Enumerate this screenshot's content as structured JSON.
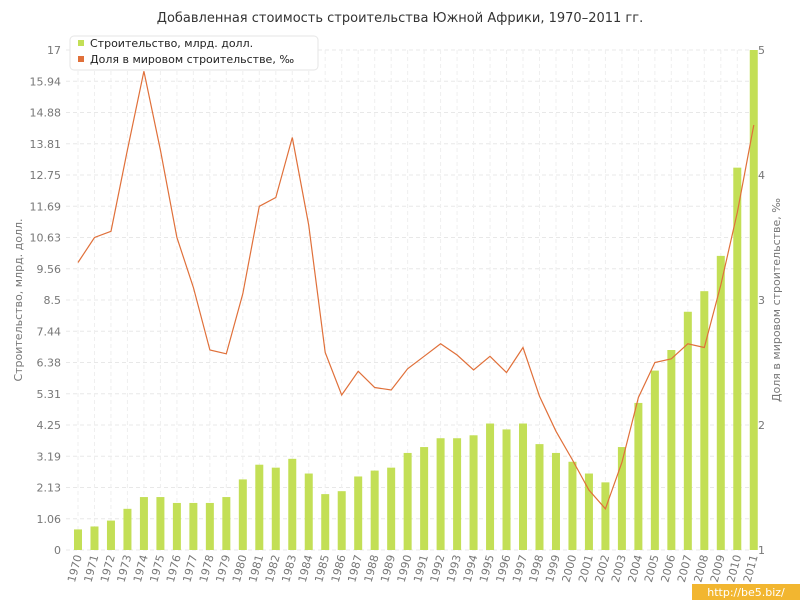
{
  "chart_data": {
    "type": "bar",
    "title": "Добавленная стоимость строительства Южной Африки, 1970–2011 гг.",
    "ylabel_left": "Строительство, млрд. долл.",
    "ylabel_right": "Доля в мировом строительстве, ‰",
    "categories": [
      "1970",
      "1971",
      "1972",
      "1973",
      "1974",
      "1975",
      "1976",
      "1977",
      "1978",
      "1979",
      "1980",
      "1981",
      "1982",
      "1983",
      "1984",
      "1985",
      "1986",
      "1987",
      "1988",
      "1989",
      "1990",
      "1991",
      "1992",
      "1993",
      "1994",
      "1995",
      "1996",
      "1997",
      "1998",
      "1999",
      "2000",
      "2001",
      "2002",
      "2003",
      "2004",
      "2005",
      "2006",
      "2007",
      "2008",
      "2009",
      "2010",
      "2011"
    ],
    "left_axis": {
      "min": 0,
      "max": 17,
      "tick_values": [
        0,
        1.0625,
        2.125,
        3.1875,
        4.25,
        5.3125,
        6.375,
        7.4375,
        8.5,
        9.5625,
        10.625,
        11.6875,
        12.75,
        13.8125,
        14.875,
        15.9375,
        17
      ],
      "tick_labels": [
        "0",
        "1.06",
        "2.13",
        "3.19",
        "4.25",
        "5.31",
        "6.38",
        "7.44",
        "8.5",
        "9.56",
        "10.63",
        "11.69",
        "12.75",
        "13.81",
        "14.88",
        "15.94",
        "17"
      ]
    },
    "right_axis": {
      "min": 1,
      "max": 5,
      "tick_values": [
        1,
        2,
        3,
        4,
        5
      ],
      "tick_labels": [
        "1",
        "2",
        "3",
        "4",
        "5"
      ]
    },
    "grid": true,
    "legend_position": "top-left",
    "series": [
      {
        "name": "Строительство, млрд. долл.",
        "type": "bar",
        "axis": "left",
        "color": "#c3df56",
        "values": [
          0.7,
          0.8,
          1.0,
          1.4,
          1.8,
          1.8,
          1.6,
          1.6,
          1.6,
          1.8,
          2.4,
          2.9,
          2.8,
          3.1,
          2.6,
          1.9,
          2.0,
          2.5,
          2.7,
          2.8,
          3.3,
          3.5,
          3.8,
          3.8,
          3.9,
          4.3,
          4.1,
          4.3,
          3.6,
          3.3,
          3.0,
          2.6,
          2.3,
          3.5,
          5.0,
          6.1,
          6.8,
          8.1,
          8.8,
          10.0,
          13.0,
          17.0
        ]
      },
      {
        "name": "Доля в мировом строительстве, ‰",
        "type": "line",
        "axis": "right",
        "color": "#e0703a",
        "values": [
          3.3,
          3.5,
          3.55,
          4.2,
          4.83,
          4.2,
          3.5,
          3.1,
          2.6,
          2.57,
          3.05,
          3.75,
          3.82,
          4.3,
          3.6,
          2.58,
          2.24,
          2.43,
          2.3,
          2.28,
          2.45,
          2.55,
          2.65,
          2.56,
          2.44,
          2.55,
          2.42,
          2.62,
          2.23,
          1.95,
          1.72,
          1.48,
          1.33,
          1.7,
          2.22,
          2.5,
          2.53,
          2.65,
          2.62,
          3.12,
          3.7,
          4.4
        ]
      }
    ]
  },
  "watermark": "http://be5.biz/"
}
